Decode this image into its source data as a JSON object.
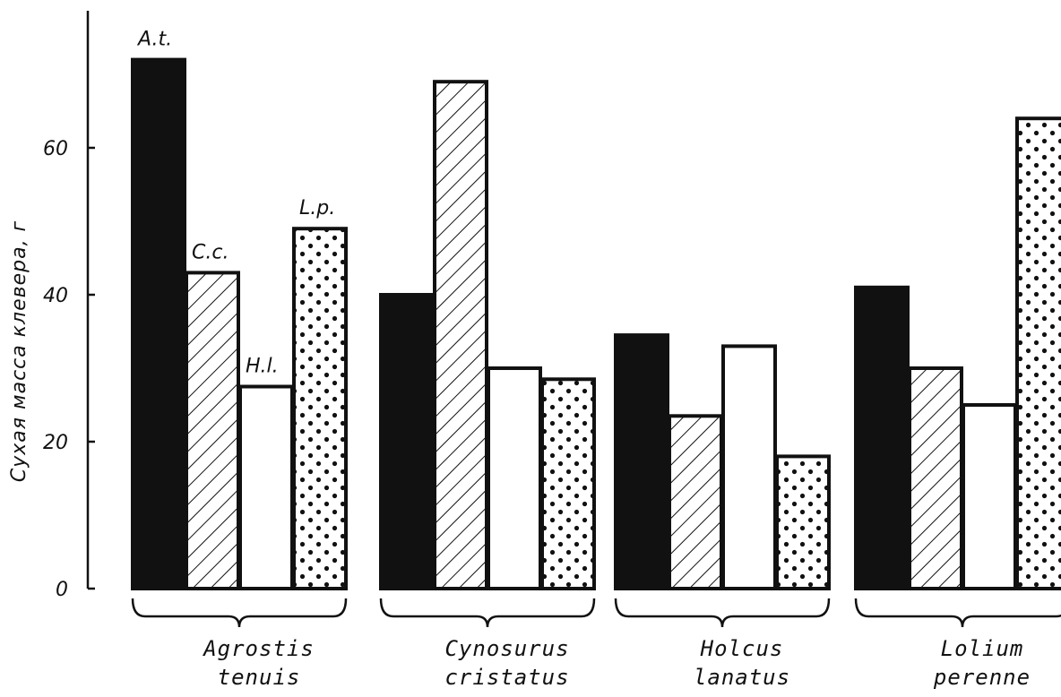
{
  "chart_data": {
    "type": "bar",
    "ylabel": "Сухая масса клевера, г",
    "ylim": [
      0,
      75
    ],
    "yticks": [
      "0",
      "20",
      "40",
      "60"
    ],
    "categories": [
      {
        "line1": "Agrostis",
        "line2": "tenuis"
      },
      {
        "line1": "Cynosurus",
        "line2": "cristatus"
      },
      {
        "line1": "Holcus",
        "line2": "lanatus"
      },
      {
        "line1": "Lolium",
        "line2": "perenne"
      }
    ],
    "series": [
      {
        "name": "A.t.",
        "fill": "black",
        "values": [
          72,
          40,
          34.5,
          41
        ]
      },
      {
        "name": "C.c.",
        "fill": "hatch",
        "values": [
          43,
          69,
          23.5,
          30
        ]
      },
      {
        "name": "H.l.",
        "fill": "white",
        "values": [
          27.5,
          30,
          33,
          25
        ]
      },
      {
        "name": "L.p.",
        "fill": "dots",
        "values": [
          49,
          28.5,
          18,
          64
        ]
      }
    ],
    "colors": {
      "ink": "#111111",
      "background": "#ffffff"
    }
  }
}
